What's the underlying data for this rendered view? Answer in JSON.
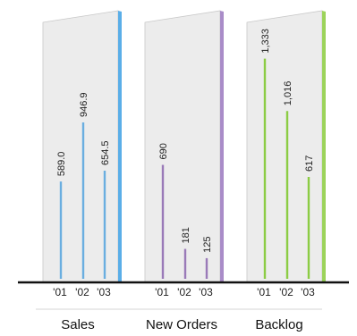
{
  "chart_data": [
    {
      "type": "bar",
      "title": "Sales",
      "categories": [
        "'01",
        "'02",
        "'03"
      ],
      "values": [
        589.0,
        946.9,
        654.5
      ],
      "value_labels": [
        "589.0",
        "946.9",
        "654.5"
      ],
      "color": "#6aaee0",
      "edge_color": "#5aaee8"
    },
    {
      "type": "bar",
      "title": "New Orders",
      "categories": [
        "'01",
        "'02",
        "'03"
      ],
      "values": [
        690,
        181,
        125
      ],
      "value_labels": [
        "690",
        "181",
        "125"
      ],
      "color": "#9a7ab8",
      "edge_color": "#a98cc8"
    },
    {
      "type": "bar",
      "title": "Backlog",
      "categories": [
        "'01",
        "'02",
        "'03"
      ],
      "values": [
        1333,
        1016,
        617
      ],
      "value_labels": [
        "1,333",
        "1,016",
        "617"
      ],
      "color": "#8ccc44",
      "edge_color": "#9cd35a"
    }
  ]
}
